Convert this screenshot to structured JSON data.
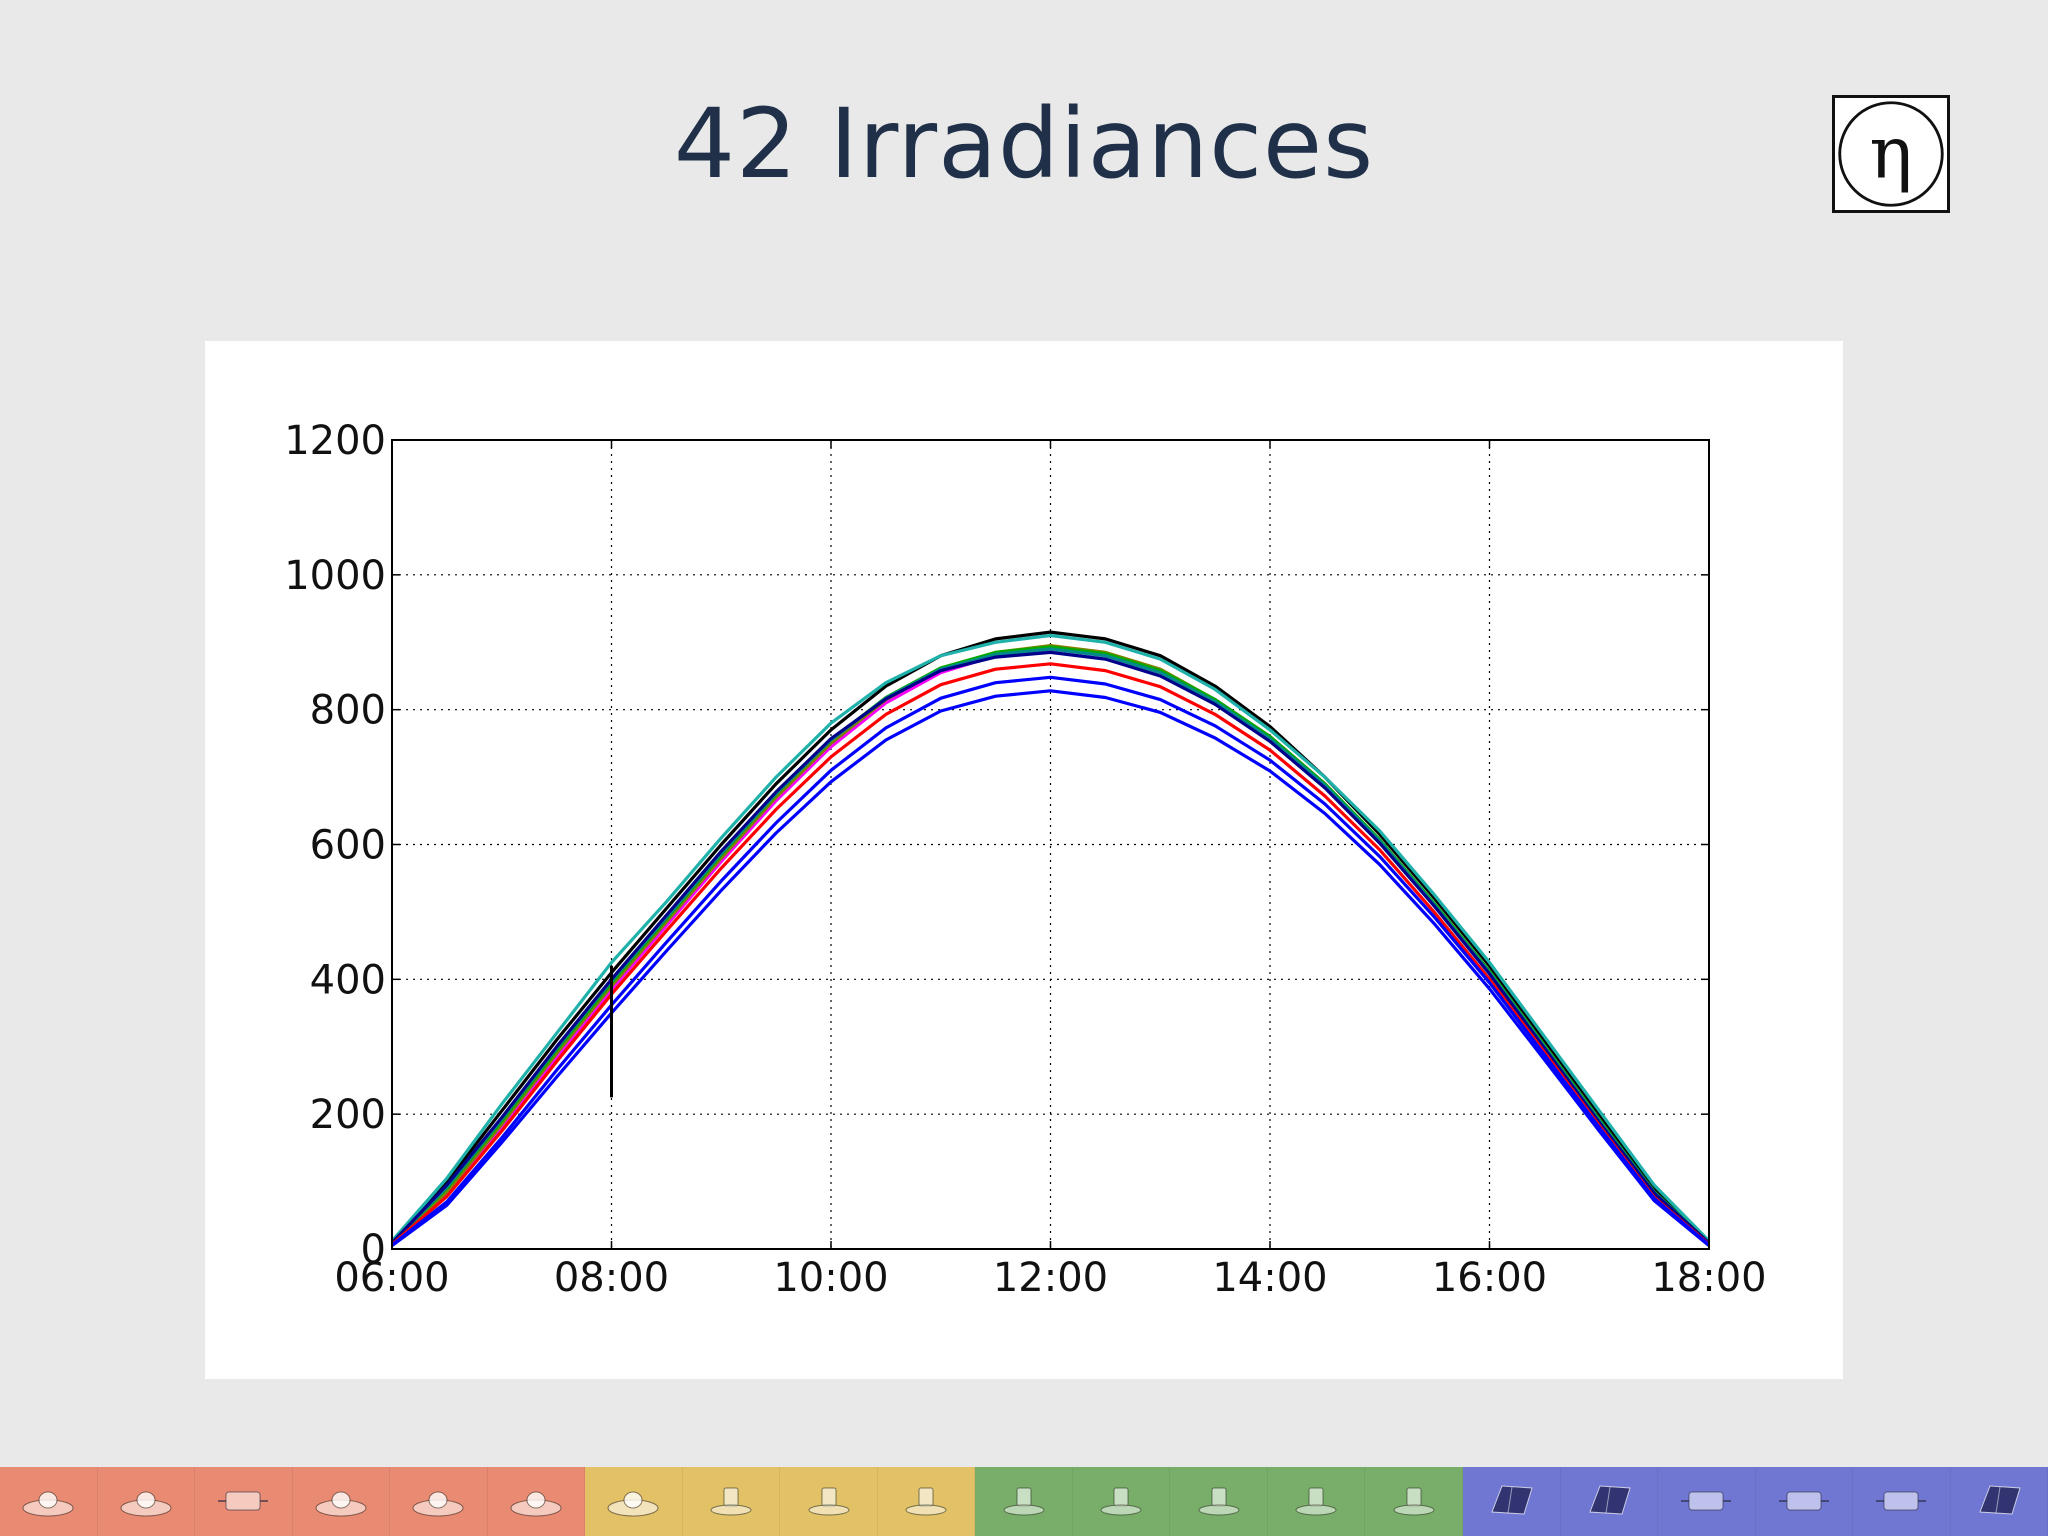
{
  "slide": {
    "title": "42 Irradiances"
  },
  "logo": {
    "symbol": "η"
  },
  "chart_data": {
    "type": "line",
    "title": "",
    "xlabel": "",
    "ylabel": "",
    "xlim": [
      "06:00",
      "18:00"
    ],
    "ylim": [
      0,
      1200
    ],
    "x_ticks": [
      "06:00",
      "08:00",
      "10:00",
      "12:00",
      "14:00",
      "16:00",
      "18:00"
    ],
    "y_ticks": [
      0,
      200,
      400,
      600,
      800,
      1000,
      1200
    ],
    "grid": true,
    "series_count": 42,
    "x_hours": [
      6.0,
      6.5,
      7.0,
      7.5,
      8.0,
      8.5,
      9.0,
      9.5,
      10.0,
      10.5,
      11.0,
      11.5,
      12.0,
      12.5,
      13.0,
      13.5,
      14.0,
      14.5,
      15.0,
      15.5,
      16.0,
      16.5,
      17.0,
      17.5,
      18.0
    ],
    "series": [
      {
        "color": "#000000",
        "values": [
          10,
          100,
          205,
          310,
          410,
          505,
          600,
          690,
          770,
          835,
          880,
          905,
          915,
          905,
          880,
          835,
          775,
          700,
          615,
          520,
          420,
          310,
          200,
          90,
          10
        ]
      },
      {
        "color": "#20b2aa",
        "values": [
          12,
          105,
          215,
          320,
          425,
          515,
          610,
          700,
          780,
          840,
          880,
          900,
          910,
          900,
          875,
          830,
          770,
          700,
          620,
          525,
          425,
          315,
          205,
          95,
          12
        ]
      },
      {
        "color": "#ff00ff",
        "values": [
          8,
          80,
          180,
          285,
          385,
          480,
          575,
          665,
          745,
          810,
          855,
          880,
          890,
          880,
          855,
          815,
          760,
          690,
          605,
          510,
          410,
          300,
          190,
          80,
          8
        ]
      },
      {
        "color": "#808000",
        "values": [
          8,
          85,
          185,
          290,
          390,
          485,
          580,
          670,
          750,
          815,
          860,
          885,
          895,
          885,
          860,
          815,
          760,
          690,
          605,
          510,
          410,
          300,
          190,
          80,
          8
        ]
      },
      {
        "color": "#00aa00",
        "values": [
          9,
          90,
          190,
          295,
          395,
          490,
          585,
          675,
          755,
          818,
          862,
          885,
          893,
          883,
          858,
          815,
          760,
          690,
          607,
          512,
          412,
          302,
          192,
          85,
          9
        ]
      },
      {
        "color": "#008b8b",
        "values": [
          9,
          92,
          193,
          298,
          398,
          492,
          587,
          676,
          755,
          817,
          860,
          882,
          890,
          880,
          855,
          812,
          757,
          688,
          605,
          510,
          410,
          300,
          190,
          84,
          9
        ]
      },
      {
        "color": "#00008b",
        "values": [
          9,
          95,
          195,
          300,
          400,
          495,
          590,
          678,
          757,
          816,
          858,
          878,
          885,
          875,
          850,
          808,
          753,
          684,
          602,
          508,
          408,
          298,
          188,
          83,
          9
        ]
      },
      {
        "color": "#ff0000",
        "values": [
          7,
          78,
          175,
          278,
          378,
          472,
          565,
          652,
          730,
          793,
          837,
          860,
          868,
          858,
          834,
          793,
          740,
          672,
          592,
          499,
          400,
          292,
          183,
          77,
          7
        ]
      },
      {
        "color": "#0000ff",
        "values": [
          6,
          70,
          165,
          265,
          362,
          455,
          546,
          632,
          710,
          773,
          817,
          840,
          848,
          838,
          815,
          776,
          725,
          660,
          582,
          492,
          395,
          288,
          180,
          75,
          6
        ]
      },
      {
        "color": "#0000ff",
        "values": [
          5,
          65,
          158,
          255,
          350,
          442,
          532,
          617,
          693,
          755,
          798,
          820,
          828,
          818,
          796,
          758,
          709,
          646,
          570,
          482,
          386,
          281,
          175,
          72,
          5
        ]
      }
    ],
    "annotation": {
      "x_hour": 8.0,
      "y_from": 225,
      "y_to": 420
    }
  },
  "footer": {
    "tiles": [
      {
        "group": "pyranometers",
        "color": "#e98a72",
        "device": "dome"
      },
      {
        "group": "pyranometers",
        "color": "#e98a72",
        "device": "dome"
      },
      {
        "group": "pyranometers",
        "color": "#e98a72",
        "device": "box"
      },
      {
        "group": "pyranometers",
        "color": "#e98a72",
        "device": "dome"
      },
      {
        "group": "pyranometers",
        "color": "#e98a72",
        "device": "dome"
      },
      {
        "group": "pyranometers",
        "color": "#e98a72",
        "device": "dome"
      },
      {
        "group": "silicon",
        "color": "#e2c167",
        "device": "dome"
      },
      {
        "group": "silicon",
        "color": "#e2c167",
        "device": "sensor"
      },
      {
        "group": "silicon",
        "color": "#e2c167",
        "device": "sensor"
      },
      {
        "group": "silicon",
        "color": "#e2c167",
        "device": "sensor"
      },
      {
        "group": "reference",
        "color": "#79ae6a",
        "device": "sensor"
      },
      {
        "group": "reference",
        "color": "#79ae6a",
        "device": "sensor"
      },
      {
        "group": "reference",
        "color": "#79ae6a",
        "device": "sensor"
      },
      {
        "group": "reference",
        "color": "#79ae6a",
        "device": "sensor"
      },
      {
        "group": "reference",
        "color": "#79ae6a",
        "device": "sensor"
      },
      {
        "group": "cells",
        "color": "#7077d3",
        "device": "panel"
      },
      {
        "group": "cells",
        "color": "#7077d3",
        "device": "panel"
      },
      {
        "group": "cells",
        "color": "#7077d3",
        "device": "box"
      },
      {
        "group": "cells",
        "color": "#7077d3",
        "device": "box"
      },
      {
        "group": "cells",
        "color": "#7077d3",
        "device": "box"
      },
      {
        "group": "cells",
        "color": "#7077d3",
        "device": "panel"
      }
    ]
  }
}
